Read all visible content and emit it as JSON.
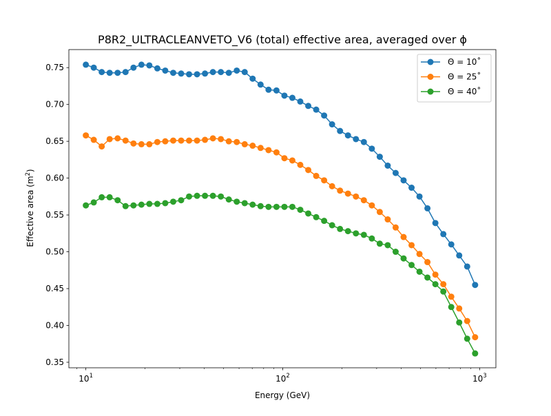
{
  "chart_data": {
    "type": "line",
    "title": "P8R2_ULTRACLEANVETO_V6 (total) effective area, averaged over ϕ",
    "xlabel": "Energy (GeV)",
    "ylabel_prefix": "Effective area (m",
    "ylabel_exp": "2",
    "ylabel_suffix": ")",
    "xscale": "log",
    "xlim": [
      8.2,
      1210
    ],
    "ylim": [
      0.3425,
      0.7745
    ],
    "xticks": [
      {
        "value": 10,
        "base": "10",
        "exp": "1"
      },
      {
        "value": 100,
        "base": "10",
        "exp": "2"
      },
      {
        "value": 1000,
        "base": "10",
        "exp": "3"
      }
    ],
    "yticks": [
      "0.35",
      "0.40",
      "0.45",
      "0.50",
      "0.55",
      "0.60",
      "0.65",
      "0.70",
      "0.75"
    ],
    "grid": false,
    "legend_position": "top-right",
    "x": [
      10.0,
      10.97,
      12.04,
      13.21,
      14.5,
      15.91,
      17.46,
      19.16,
      21.02,
      23.07,
      25.31,
      27.78,
      30.48,
      33.45,
      36.71,
      40.28,
      44.2,
      48.5,
      53.23,
      58.41,
      64.1,
      70.33,
      77.18,
      84.7,
      92.95,
      102.0,
      111.9,
      122.8,
      134.8,
      147.9,
      162.3,
      178.1,
      195.5,
      214.5,
      235.4,
      258.3,
      283.5,
      311.1,
      341.4,
      374.6,
      411.1,
      451.2,
      495.1,
      543.3,
      596.2,
      654.3,
      718.0,
      787.9,
      864.7,
      948.9
    ],
    "series": [
      {
        "name": "Θ = 10˚",
        "color": "#1f77b4",
        "values": [
          0.754,
          0.75,
          0.744,
          0.743,
          0.743,
          0.744,
          0.75,
          0.754,
          0.753,
          0.749,
          0.746,
          0.743,
          0.742,
          0.741,
          0.741,
          0.742,
          0.744,
          0.744,
          0.743,
          0.746,
          0.744,
          0.735,
          0.727,
          0.72,
          0.719,
          0.712,
          0.709,
          0.704,
          0.698,
          0.693,
          0.685,
          0.673,
          0.664,
          0.658,
          0.653,
          0.649,
          0.64,
          0.629,
          0.617,
          0.607,
          0.597,
          0.587,
          0.575,
          0.559,
          0.539,
          0.524,
          0.51,
          0.495,
          0.48,
          0.455
        ]
      },
      {
        "name": "Θ = 25˚",
        "color": "#ff7f0e",
        "values": [
          0.658,
          0.652,
          0.643,
          0.653,
          0.654,
          0.651,
          0.647,
          0.646,
          0.646,
          0.649,
          0.65,
          0.651,
          0.651,
          0.651,
          0.651,
          0.652,
          0.654,
          0.653,
          0.65,
          0.649,
          0.646,
          0.644,
          0.641,
          0.638,
          0.635,
          0.627,
          0.624,
          0.618,
          0.611,
          0.603,
          0.597,
          0.589,
          0.583,
          0.579,
          0.575,
          0.57,
          0.563,
          0.554,
          0.544,
          0.533,
          0.52,
          0.509,
          0.497,
          0.486,
          0.469,
          0.456,
          0.439,
          0.423,
          0.406,
          0.384
        ]
      },
      {
        "name": "Θ = 40˚",
        "color": "#2ca02c",
        "values": [
          0.563,
          0.567,
          0.574,
          0.574,
          0.57,
          0.562,
          0.563,
          0.564,
          0.565,
          0.565,
          0.566,
          0.568,
          0.57,
          0.575,
          0.576,
          0.576,
          0.576,
          0.575,
          0.571,
          0.568,
          0.566,
          0.564,
          0.562,
          0.561,
          0.561,
          0.561,
          0.561,
          0.557,
          0.552,
          0.547,
          0.542,
          0.536,
          0.531,
          0.528,
          0.525,
          0.523,
          0.518,
          0.511,
          0.509,
          0.5,
          0.491,
          0.482,
          0.473,
          0.465,
          0.456,
          0.446,
          0.425,
          0.404,
          0.382,
          0.362
        ]
      }
    ]
  }
}
